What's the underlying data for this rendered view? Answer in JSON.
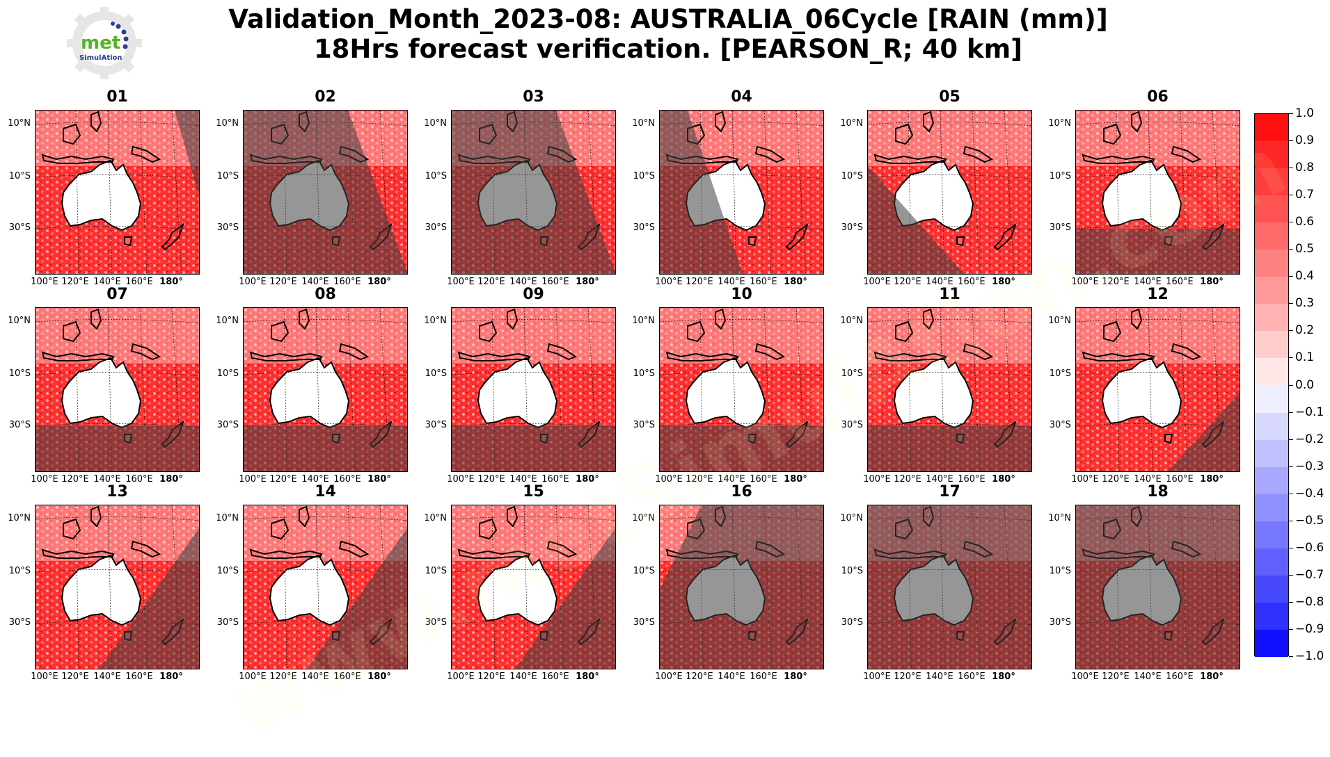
{
  "logo": {
    "text_main": "met",
    "text_sub": "SimulAtion",
    "icon": "gear-logo-icon"
  },
  "title": {
    "line1": "Validation_Month_2023-08: AUSTRALIA_06Cycle [RAIN (mm)]",
    "line2": "18Hrs forecast verification.  [PEARSON_R; 40 km]"
  },
  "axis": {
    "lat_labels": [
      "10°N",
      "10°S",
      "30°S"
    ],
    "lon_labels": [
      "100°E",
      "120°E",
      "140°E",
      "160°E",
      "180°"
    ]
  },
  "panels": [
    {
      "label": "01",
      "night": "right-edge"
    },
    {
      "label": "02",
      "night": "left-diagonal"
    },
    {
      "label": "03",
      "night": "left-diagonal"
    },
    {
      "label": "04",
      "night": "left-small"
    },
    {
      "label": "05",
      "night": "bottom-left"
    },
    {
      "label": "06",
      "night": "bottom-band"
    },
    {
      "label": "07",
      "night": "bottom-band"
    },
    {
      "label": "08",
      "night": "bottom-band"
    },
    {
      "label": "09",
      "night": "bottom-band"
    },
    {
      "label": "10",
      "night": "bottom-band"
    },
    {
      "label": "11",
      "night": "bottom-band"
    },
    {
      "label": "12",
      "night": "bottom-right"
    },
    {
      "label": "13",
      "night": "right-diagonal"
    },
    {
      "label": "14",
      "night": "right-diagonal"
    },
    {
      "label": "15",
      "night": "right-diagonal"
    },
    {
      "label": "16",
      "night": "most"
    },
    {
      "label": "17",
      "night": "all"
    },
    {
      "label": "18",
      "night": "all"
    }
  ],
  "colorbar": {
    "labels": [
      "1.0",
      "0.9",
      "0.8",
      "0.7",
      "0.6",
      "0.5",
      "0.4",
      "0.3",
      "0.2",
      "0.1",
      "0.0",
      "−0.1",
      "−0.2",
      "−0.3",
      "−0.4",
      "−0.5",
      "−0.6",
      "−0.7",
      "−0.8",
      "−0.9",
      "−1.0"
    ],
    "colors": [
      "#ff1010",
      "#ff2828",
      "#ff3d3d",
      "#ff5252",
      "#ff6a6a",
      "#ff8282",
      "#ff9a9a",
      "#ffb2b2",
      "#ffcccc",
      "#ffe8e8",
      "#eeeeff",
      "#d8d8ff",
      "#c0c0ff",
      "#a8a8ff",
      "#9090ff",
      "#7878ff",
      "#6060ff",
      "#4848ff",
      "#3030ff",
      "#1010ff"
    ]
  },
  "watermark": "www.metSimulAtion.com"
}
